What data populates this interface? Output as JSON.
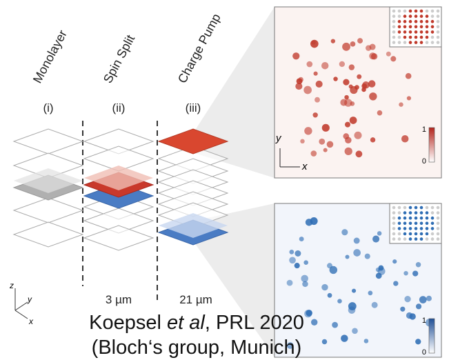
{
  "columns": [
    {
      "label": "Monolayer",
      "index": "(i)"
    },
    {
      "label": "Spin Split",
      "index": "(ii)"
    },
    {
      "label": "Charge Pump",
      "index": "(iii)"
    }
  ],
  "spacings": [
    "3 µm",
    "21 µm"
  ],
  "axes": {
    "z": "z",
    "y": "y",
    "x": "x"
  },
  "panels": [
    {
      "axes": {
        "y": "y",
        "x": "x"
      },
      "colorbar": [
        "1",
        "0"
      ]
    },
    {
      "colorbar": [
        "1",
        "0"
      ]
    }
  ],
  "caption": {
    "line1": [
      "Koepsel",
      "et al",
      ", PRL 2020"
    ],
    "line2": "(Bloch‘s group, Munich)"
  }
}
